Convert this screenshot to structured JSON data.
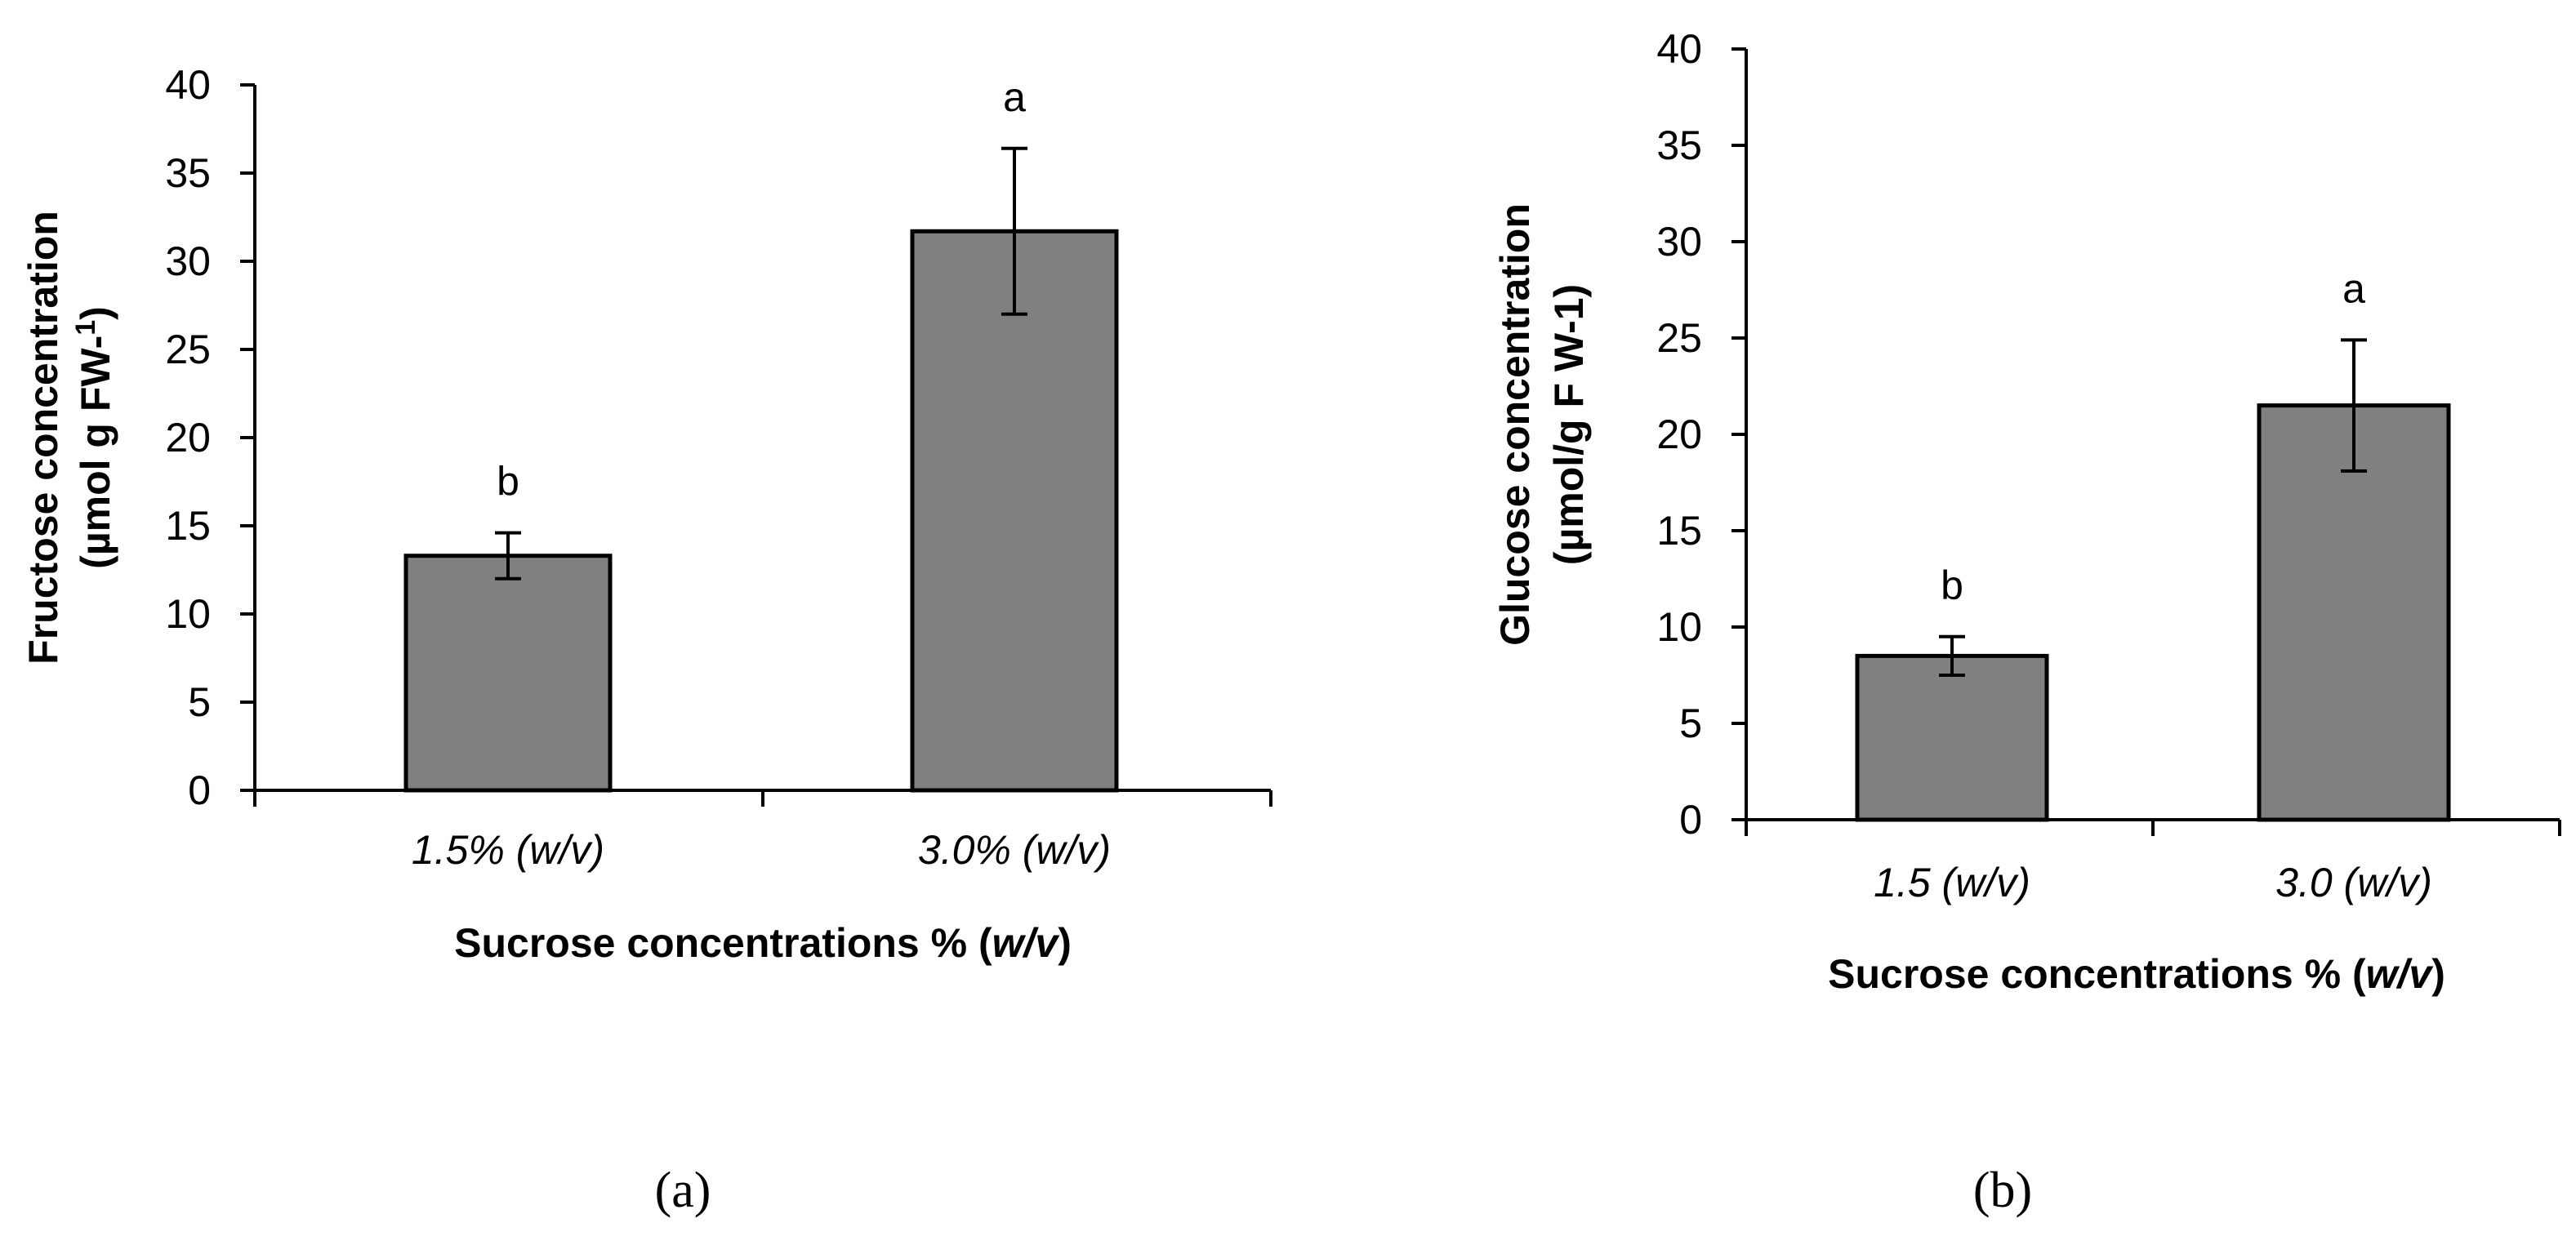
{
  "chart_data": [
    {
      "type": "bar",
      "panel_label": "(a)",
      "categories": [
        "1.5% (w/v)",
        "3.0% (w/v)"
      ],
      "values": [
        13.3,
        31.7
      ],
      "errors": [
        1.3,
        4.7
      ],
      "significance": [
        "b",
        "a"
      ],
      "ylim": [
        0,
        40
      ],
      "yticks": [
        0,
        5,
        10,
        15,
        20,
        25,
        30,
        35,
        40
      ],
      "ylabel_line1": "Fructose concentration",
      "ylabel_line2_pre": "(µmol g FW-",
      "ylabel_line2_sup": "1",
      "ylabel_line2_post": ")",
      "xlabel_main": "Sucrose concentrations % (",
      "xlabel_italic": "w/v",
      "xlabel_end": ")",
      "bar_color": "#808080"
    },
    {
      "type": "bar",
      "panel_label": "(b)",
      "categories": [
        "1.5 (w/v)",
        "3.0 (w/v)"
      ],
      "values": [
        8.5,
        21.5
      ],
      "errors": [
        1.0,
        3.4
      ],
      "significance": [
        "b",
        "a"
      ],
      "ylim": [
        0,
        40
      ],
      "yticks": [
        0,
        5,
        10,
        15,
        20,
        25,
        30,
        35,
        40
      ],
      "ylabel_line1": "Glucose concentration",
      "ylabel_line2": "(µmol/g F W-1)",
      "xlabel_main": "Sucrose concentrations % (",
      "xlabel_italic": "w/v",
      "xlabel_end": ")",
      "bar_color": "#808080"
    }
  ]
}
